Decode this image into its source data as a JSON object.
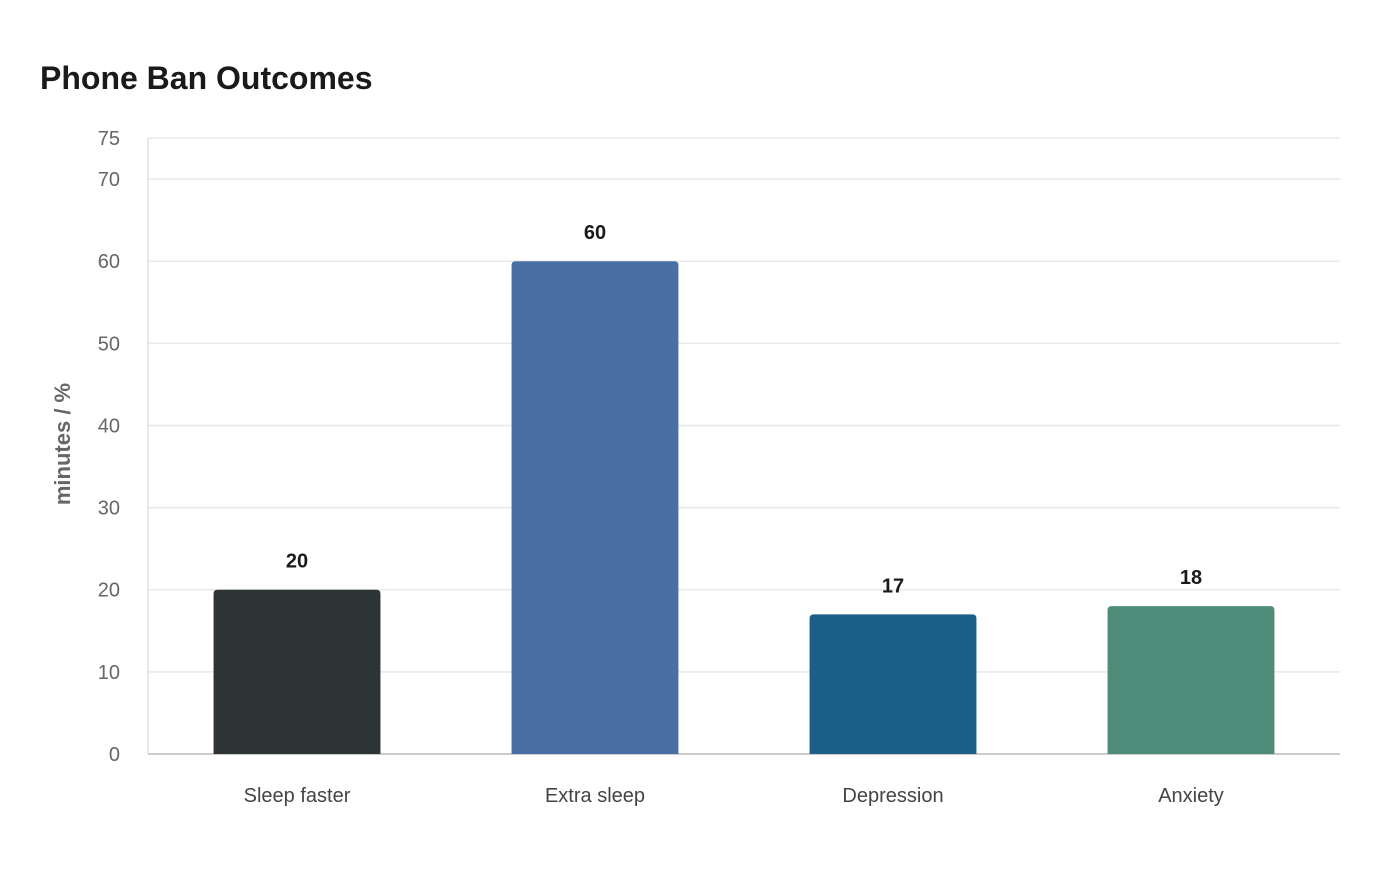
{
  "chart_data": {
    "type": "bar",
    "title": "Phone Ban Outcomes",
    "xlabel": "",
    "ylabel": "minutes / %",
    "categories": [
      "Sleep faster",
      "Extra sleep",
      "Depression",
      "Anxiety"
    ],
    "values": [
      20,
      60,
      17,
      18
    ],
    "data_labels": [
      "20",
      "60",
      "17",
      "18"
    ],
    "colors": [
      "#2d3436",
      "#4a6fa5",
      "#1a6088",
      "#4f8c7a"
    ],
    "ylim": [
      0,
      75
    ],
    "yticks": [
      0,
      10,
      20,
      30,
      40,
      50,
      60,
      70,
      75
    ],
    "grid": true,
    "legend": "none"
  }
}
